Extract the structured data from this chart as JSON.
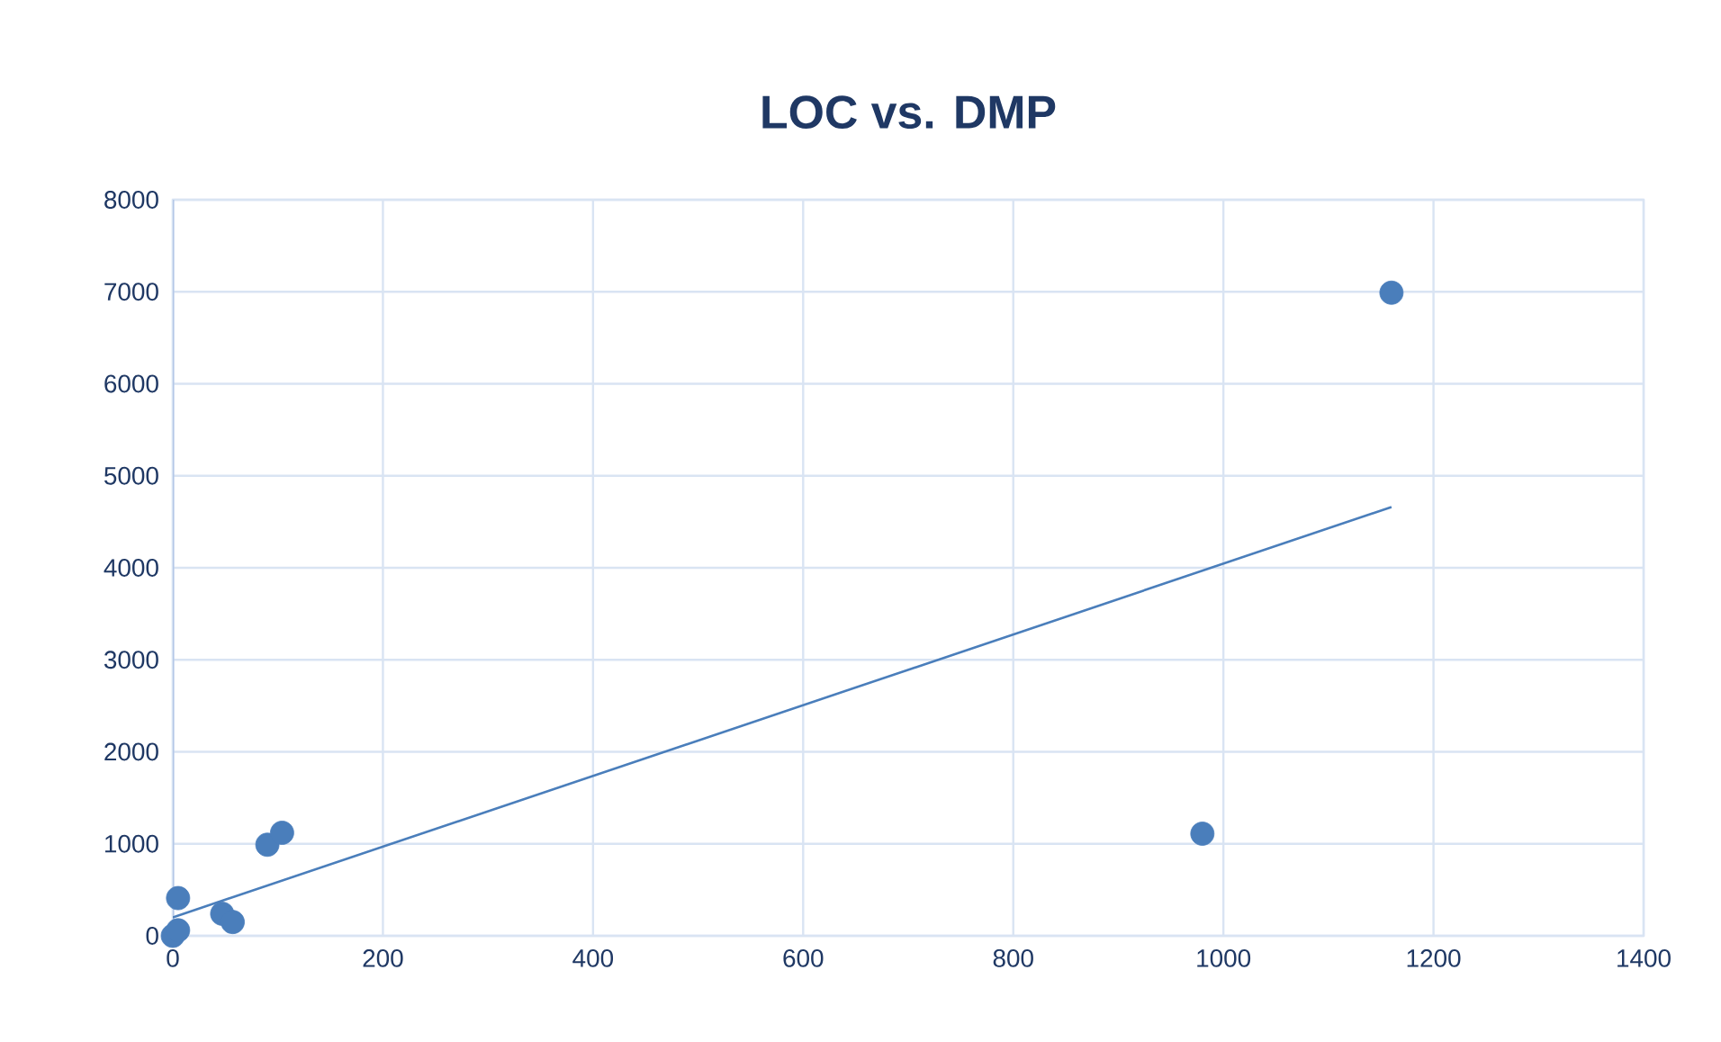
{
  "chart_data": {
    "type": "scatter",
    "title": "LOC vs. DMP",
    "series": [
      {
        "color": "#4a7ebb",
        "x": [
          1160,
          980,
          90,
          104,
          5,
          47,
          57,
          0,
          5
        ],
        "values": [
          6990,
          1110,
          990,
          1120,
          410,
          240,
          150,
          0,
          60
        ]
      },
      {
        "type": "line",
        "marker": "none",
        "color": "#4a7ebb",
        "x": [
          0,
          1160
        ],
        "values": [
          200,
          4660
        ]
      }
    ],
    "xlim": [
      0,
      1400
    ],
    "ylim": [
      0,
      8000
    ],
    "xticks": [
      0,
      200,
      400,
      600,
      800,
      1000,
      1200,
      1400
    ],
    "yticks": [
      0,
      1000,
      2000,
      3000,
      4000,
      5000,
      6000,
      7000,
      8000
    ],
    "grid": true,
    "marker": "circle"
  }
}
